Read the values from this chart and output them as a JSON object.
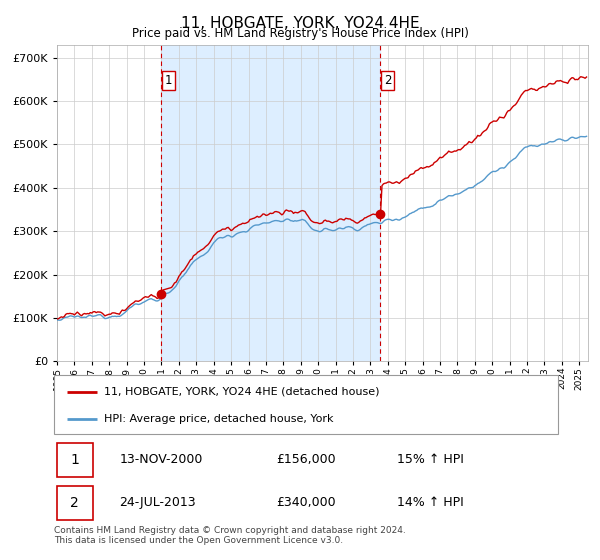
{
  "title": "11, HOBGATE, YORK, YO24 4HE",
  "subtitle": "Price paid vs. HM Land Registry's House Price Index (HPI)",
  "ylim": [
    0,
    730000
  ],
  "xlim_start": 1995.0,
  "xlim_end": 2025.5,
  "purchase1_year": 2001.0,
  "purchase1_price": 156000,
  "purchase2_year": 2013.58,
  "purchase2_price": 340000,
  "legend_line1": "11, HOBGATE, YORK, YO24 4HE (detached house)",
  "legend_line2": "HPI: Average price, detached house, York",
  "table_row1_num": "1",
  "table_row1_date": "13-NOV-2000",
  "table_row1_price": "£156,000",
  "table_row1_hpi": "15% ↑ HPI",
  "table_row2_num": "2",
  "table_row2_date": "24-JUL-2013",
  "table_row2_price": "£340,000",
  "table_row2_hpi": "14% ↑ HPI",
  "footer": "Contains HM Land Registry data © Crown copyright and database right 2024.\nThis data is licensed under the Open Government Licence v3.0.",
  "line_color_red": "#cc0000",
  "line_color_blue": "#5599cc",
  "vline_color": "#cc0000",
  "shade_color": "#ddeeff",
  "grid_color": "#cccccc",
  "background_color": "#ffffff"
}
